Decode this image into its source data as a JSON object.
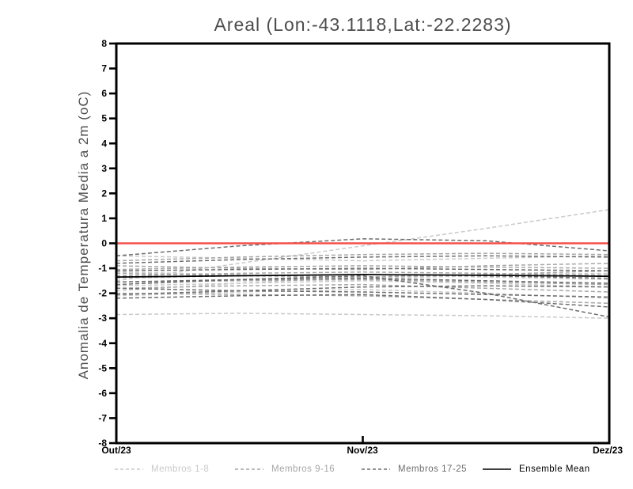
{
  "chart_data": {
    "type": "line",
    "title": "Areal (Lon:-43.1118,Lat:-22.2283)",
    "ylabel": "Anomalia de Temperatura Media a 2m (oC)",
    "xlabel": "",
    "ylim": [
      -8,
      8
    ],
    "grid": false,
    "legend_position": "bottom",
    "y_ticks": [
      8,
      7,
      6,
      5,
      4,
      3,
      2,
      1,
      0,
      -1,
      -2,
      -3,
      -4,
      -5,
      -6,
      -7,
      -8
    ],
    "x_ticks": [
      {
        "pos": 0,
        "label": "Out/23"
      },
      {
        "pos": 1,
        "label": "Nov/23"
      },
      {
        "pos": 2,
        "label": "Dez/23"
      }
    ],
    "x_points": [
      0,
      0.5,
      1,
      1.5,
      2
    ],
    "zero_line": {
      "value": 0,
      "color": "#f4504b"
    },
    "groups": [
      {
        "name": "Membros 1-8",
        "color": "#c9c9c9",
        "style": "dashed",
        "series": [
          [
            -1.5,
            -0.8,
            -0.1,
            0.6,
            1.35
          ],
          [
            -2.85,
            -2.8,
            -2.85,
            -2.9,
            -3.0
          ],
          [
            -0.5,
            -0.6,
            -0.7,
            -0.6,
            -0.5
          ],
          [
            -1.9,
            -1.6,
            -1.35,
            -1.25,
            -1.2
          ],
          [
            -1.4,
            -1.3,
            -1.25,
            -1.35,
            -1.45
          ],
          [
            -1.7,
            -1.6,
            -1.5,
            -1.6,
            -1.75
          ],
          [
            -2.1,
            -1.95,
            -1.85,
            -2.0,
            -2.2
          ],
          [
            -1.15,
            -1.25,
            -1.4,
            -1.3,
            -1.25
          ]
        ]
      },
      {
        "name": "Membros 9-16",
        "color": "#a6a6a6",
        "style": "dashed",
        "series": [
          [
            -0.7,
            -0.55,
            -0.45,
            -0.4,
            -0.45
          ],
          [
            -1.05,
            -0.95,
            -0.9,
            -0.95,
            -1.0
          ],
          [
            -1.3,
            -1.2,
            -1.15,
            -1.2,
            -1.3
          ],
          [
            -1.55,
            -1.5,
            -1.45,
            -1.55,
            -1.65
          ],
          [
            -1.8,
            -1.7,
            -1.65,
            -1.8,
            -1.95
          ],
          [
            -2.0,
            -2.05,
            -2.1,
            -2.25,
            -2.4
          ],
          [
            -1.2,
            -1.3,
            -1.35,
            -1.25,
            -1.1
          ],
          [
            -0.9,
            -1.0,
            -1.05,
            -0.9,
            -0.8
          ]
        ]
      },
      {
        "name": "Membros 17-25",
        "color": "#6e6e6e",
        "style": "dashed",
        "series": [
          [
            -0.5,
            -0.1,
            0.18,
            0.1,
            -0.3
          ],
          [
            -0.8,
            -0.65,
            -0.55,
            -0.5,
            -0.55
          ],
          [
            -1.1,
            -1.05,
            -1.0,
            -1.05,
            -1.1
          ],
          [
            -1.35,
            -1.3,
            -1.25,
            -1.3,
            -1.4
          ],
          [
            -1.55,
            -1.45,
            -1.4,
            -1.5,
            -1.6
          ],
          [
            -1.8,
            -1.9,
            -1.95,
            -2.05,
            -2.15
          ],
          [
            -2.05,
            -1.9,
            -1.75,
            -1.7,
            -1.75
          ],
          [
            -2.2,
            -2.1,
            -2.05,
            -2.25,
            -2.55
          ],
          [
            -1.65,
            -1.45,
            -1.3,
            -2.0,
            -2.95
          ]
        ]
      },
      {
        "name": "Ensemble Mean",
        "color": "#000000",
        "style": "solid",
        "series": [
          [
            -1.35,
            -1.3,
            -1.25,
            -1.28,
            -1.32
          ]
        ]
      }
    ]
  }
}
